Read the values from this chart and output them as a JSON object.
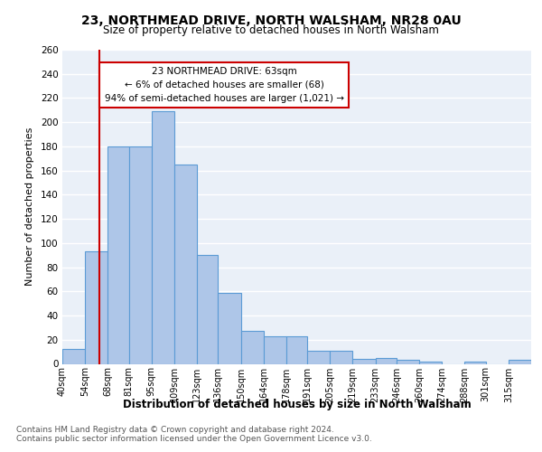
{
  "title": "23, NORTHMEAD DRIVE, NORTH WALSHAM, NR28 0AU",
  "subtitle": "Size of property relative to detached houses in North Walsham",
  "xlabel": "Distribution of detached houses by size in North Walsham",
  "ylabel": "Number of detached properties",
  "bar_color": "#aec6e8",
  "bar_edge_color": "#5b9bd5",
  "background_color": "#eaf0f8",
  "grid_color": "#ffffff",
  "annotation_box_color": "#cc0000",
  "annotation_text": "23 NORTHMEAD DRIVE: 63sqm\n← 6% of detached houses are smaller (68)\n94% of semi-detached houses are larger (1,021) →",
  "vline_x": 63,
  "vline_color": "#cc0000",
  "bin_edges": [
    40,
    54,
    68,
    81,
    95,
    109,
    123,
    136,
    150,
    164,
    178,
    191,
    205,
    219,
    233,
    246,
    260,
    274,
    288,
    301,
    315,
    329
  ],
  "bin_labels": [
    "40sqm",
    "54sqm",
    "68sqm",
    "81sqm",
    "95sqm",
    "109sqm",
    "123sqm",
    "136sqm",
    "150sqm",
    "164sqm",
    "178sqm",
    "191sqm",
    "205sqm",
    "219sqm",
    "233sqm",
    "246sqm",
    "260sqm",
    "274sqm",
    "288sqm",
    "301sqm",
    "315sqm"
  ],
  "bar_heights": [
    12,
    93,
    180,
    180,
    209,
    165,
    90,
    59,
    27,
    23,
    23,
    11,
    11,
    4,
    5,
    3,
    2,
    0,
    2,
    0,
    3
  ],
  "ylim": [
    0,
    260
  ],
  "yticks": [
    0,
    20,
    40,
    60,
    80,
    100,
    120,
    140,
    160,
    180,
    200,
    220,
    240,
    260
  ],
  "footer_line1": "Contains HM Land Registry data © Crown copyright and database right 2024.",
  "footer_line2": "Contains public sector information licensed under the Open Government Licence v3.0."
}
